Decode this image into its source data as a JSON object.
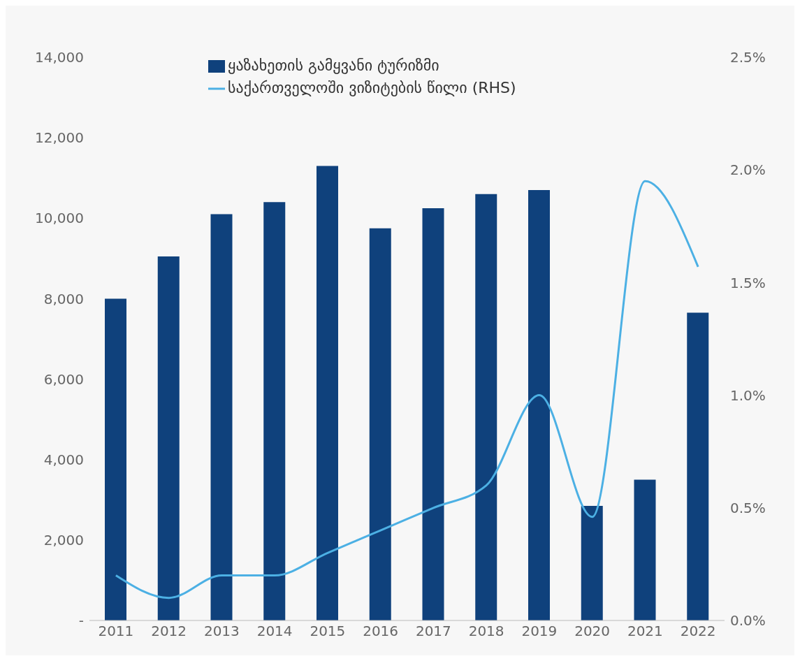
{
  "chart_data": {
    "type": "bar",
    "categories": [
      "2011",
      "2012",
      "2013",
      "2014",
      "2015",
      "2016",
      "2017",
      "2018",
      "2019",
      "2020",
      "2021",
      "2022"
    ],
    "series": [
      {
        "name": "ყაზახეთის გამყვანი ტურიზმი",
        "color": "#0f417c",
        "values": [
          8000,
          9050,
          10100,
          10400,
          11300,
          9750,
          10250,
          10600,
          10700,
          2850,
          3500,
          7650
        ]
      },
      {
        "name": "საქართველოში ვიზიტების წილი (RHS)",
        "type": "line",
        "axis": "y2",
        "color": "#4cb0e4",
        "values": [
          0.2,
          0.1,
          0.2,
          0.2,
          0.3,
          0.4,
          0.5,
          0.6,
          1.0,
          0.46,
          1.95,
          1.57
        ]
      }
    ],
    "ylim": [
      0,
      14000
    ],
    "yticks": [
      {
        "value": 0,
        "label": "-"
      },
      {
        "value": 2000,
        "label": "2,000"
      },
      {
        "value": 4000,
        "label": "4,000"
      },
      {
        "value": 6000,
        "label": "6,000"
      },
      {
        "value": 8000,
        "label": "8,000"
      },
      {
        "value": 10000,
        "label": "10,000"
      },
      {
        "value": 12000,
        "label": "12,000"
      },
      {
        "value": 14000,
        "label": "14,000"
      }
    ],
    "y2lim": [
      0,
      2.5
    ],
    "y2ticks": [
      {
        "value": 0,
        "label": "0.0%"
      },
      {
        "value": 0.5,
        "label": "0.5%"
      },
      {
        "value": 1,
        "label": "1.0%"
      },
      {
        "value": 1.5,
        "label": "1.5%"
      },
      {
        "value": 2,
        "label": "2.0%"
      },
      {
        "value": 2.5,
        "label": "2.5%"
      }
    ],
    "legend": "top",
    "grid": false,
    "marker": "none"
  }
}
